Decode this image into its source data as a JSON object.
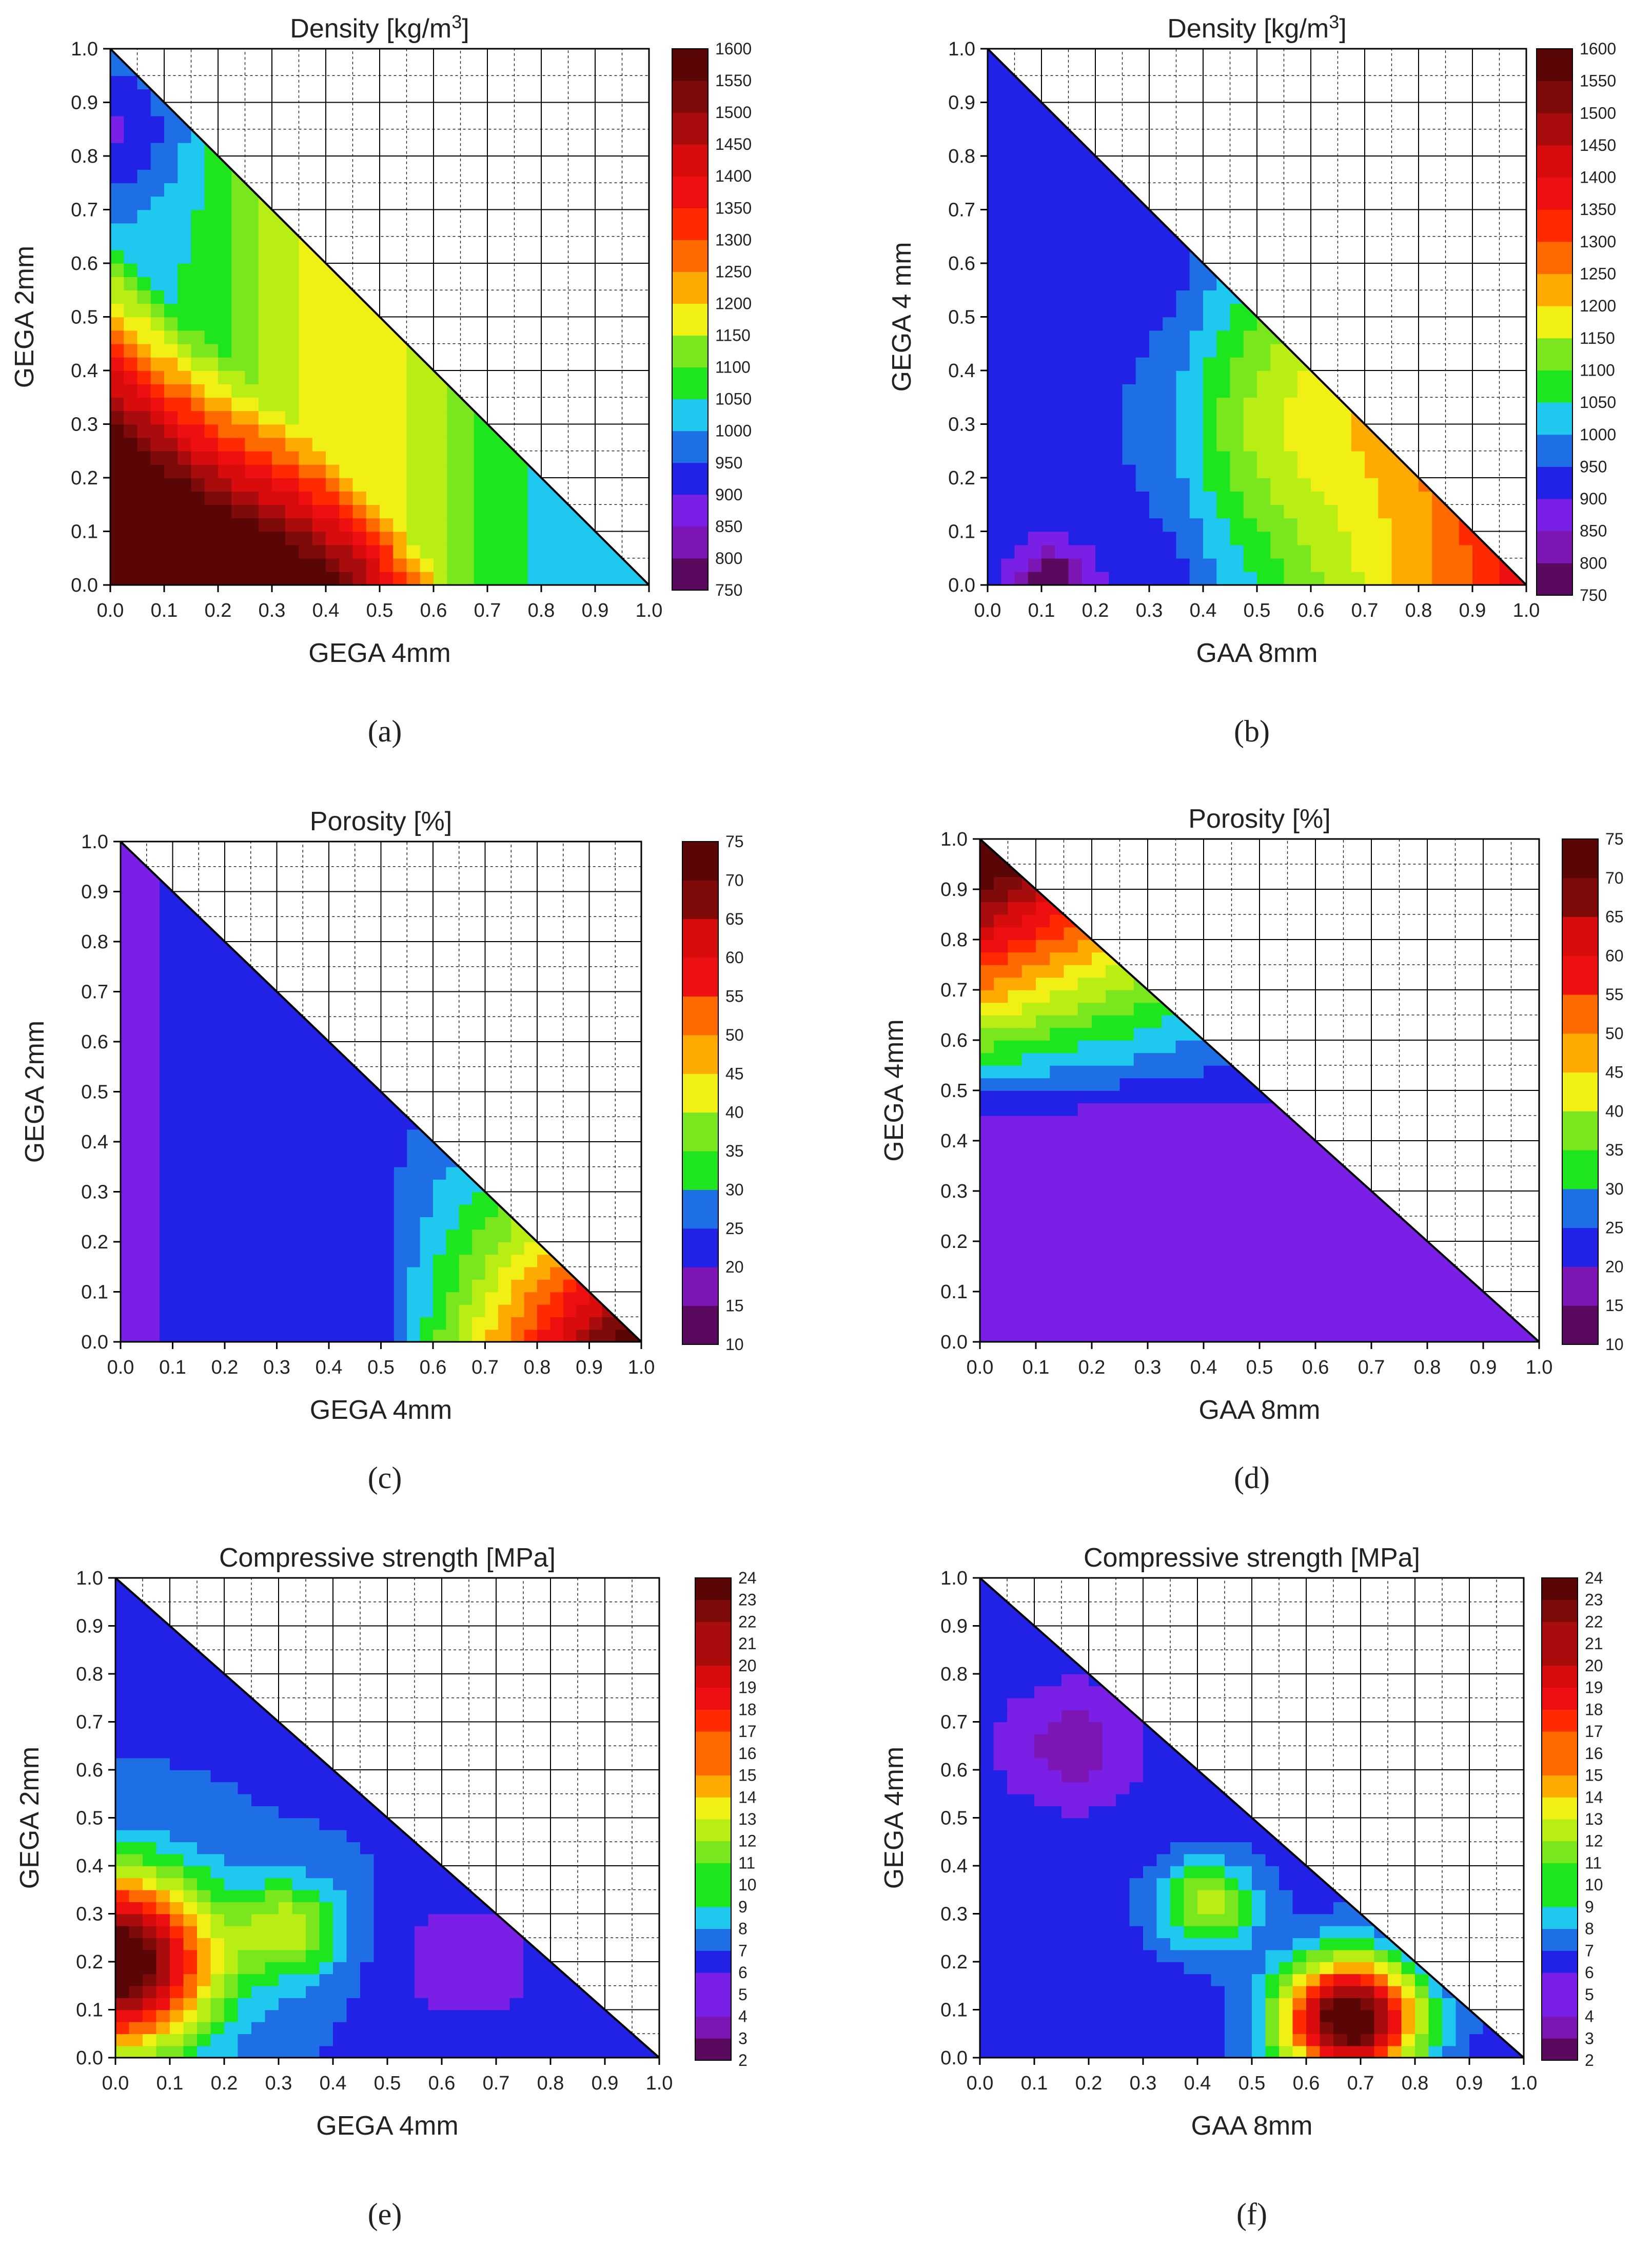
{
  "chart_data": [
    {
      "id": "a",
      "type": "heatmap",
      "subtype": "ternary-contour",
      "title": "Density [kg/m",
      "title_sup": "3",
      "title_end": "]",
      "xlabel": "GEGA 4mm",
      "ylabel": "GEGA 2mm",
      "xlim": [
        0,
        1
      ],
      "ylim": [
        0,
        1
      ],
      "xticks": [
        "0.0",
        "0.1",
        "0.2",
        "0.3",
        "0.4",
        "0.5",
        "0.6",
        "0.7",
        "0.8",
        "0.9",
        "1.0"
      ],
      "yticks": [
        "0.0",
        "0.1",
        "0.2",
        "0.3",
        "0.4",
        "0.5",
        "0.6",
        "0.7",
        "0.8",
        "0.9",
        "1.0"
      ],
      "colorbar": {
        "min": 750,
        "max": 1600,
        "levels": [
          "750",
          "800",
          "850",
          "900",
          "950",
          "1000",
          "1050",
          "1100",
          "1150",
          "1200",
          "1250",
          "1300",
          "1350",
          "1400",
          "1450",
          "1500",
          "1550",
          "1600"
        ]
      },
      "caption": "(a)"
    },
    {
      "id": "b",
      "type": "heatmap",
      "subtype": "ternary-contour",
      "title": "Density [kg/m",
      "title_sup": "3",
      "title_end": "]",
      "xlabel": "GAA 8mm",
      "ylabel": "GEGA 4 mm",
      "xlim": [
        0,
        1
      ],
      "ylim": [
        0,
        1
      ],
      "xticks": [
        "0.0",
        "0.1",
        "0.2",
        "0.3",
        "0.4",
        "0.5",
        "0.6",
        "0.7",
        "0.8",
        "0.9",
        "1.0"
      ],
      "yticks": [
        "0.0",
        "0.1",
        "0.2",
        "0.3",
        "0.4",
        "0.5",
        "0.6",
        "0.7",
        "0.8",
        "0.9",
        "1.0"
      ],
      "colorbar": {
        "min": 750,
        "max": 1600,
        "levels": [
          "750",
          "800",
          "850",
          "900",
          "950",
          "1000",
          "1050",
          "1100",
          "1150",
          "1200",
          "1250",
          "1300",
          "1350",
          "1400",
          "1450",
          "1500",
          "1550",
          "1600"
        ]
      },
      "caption": "(b)"
    },
    {
      "id": "c",
      "type": "heatmap",
      "subtype": "ternary-contour",
      "title": "Porosity [%]",
      "title_sup": "",
      "title_end": "",
      "xlabel": "GEGA 4mm",
      "ylabel": "GEGA 2mm",
      "xlim": [
        0,
        1
      ],
      "ylim": [
        0,
        1
      ],
      "xticks": [
        "0.0",
        "0.1",
        "0.2",
        "0.3",
        "0.4",
        "0.5",
        "0.6",
        "0.7",
        "0.8",
        "0.9",
        "1.0"
      ],
      "yticks": [
        "0.0",
        "0.1",
        "0.2",
        "0.3",
        "0.4",
        "0.5",
        "0.6",
        "0.7",
        "0.8",
        "0.9",
        "1.0"
      ],
      "colorbar": {
        "min": 10,
        "max": 75,
        "levels": [
          "10",
          "15",
          "20",
          "25",
          "30",
          "35",
          "40",
          "45",
          "50",
          "55",
          "60",
          "65",
          "70",
          "75"
        ]
      },
      "caption": "(c)"
    },
    {
      "id": "d",
      "type": "heatmap",
      "subtype": "ternary-contour",
      "title": "Porosity [%]",
      "title_sup": "",
      "title_end": "",
      "xlabel": "GAA 8mm",
      "ylabel": "GEGA 4mm",
      "xlim": [
        0,
        1
      ],
      "ylim": [
        0,
        1
      ],
      "xticks": [
        "0.0",
        "0.1",
        "0.2",
        "0.3",
        "0.4",
        "0.5",
        "0.6",
        "0.7",
        "0.8",
        "0.9",
        "1.0"
      ],
      "yticks": [
        "0.0",
        "0.1",
        "0.2",
        "0.3",
        "0.4",
        "0.5",
        "0.6",
        "0.7",
        "0.8",
        "0.9",
        "1.0"
      ],
      "colorbar": {
        "min": 10,
        "max": 75,
        "levels": [
          "10",
          "15",
          "20",
          "25",
          "30",
          "35",
          "40",
          "45",
          "50",
          "55",
          "60",
          "65",
          "70",
          "75"
        ]
      },
      "caption": "(d)"
    },
    {
      "id": "e",
      "type": "heatmap",
      "subtype": "ternary-contour",
      "title": "Compressive strength [MPa]",
      "title_sup": "",
      "title_end": "",
      "xlabel": "GEGA 4mm",
      "ylabel": "GEGA 2mm",
      "xlim": [
        0,
        1
      ],
      "ylim": [
        0,
        1
      ],
      "xticks": [
        "0.0",
        "0.1",
        "0.2",
        "0.3",
        "0.4",
        "0.5",
        "0.6",
        "0.7",
        "0.8",
        "0.9",
        "1.0"
      ],
      "yticks": [
        "0.0",
        "0.1",
        "0.2",
        "0.3",
        "0.4",
        "0.5",
        "0.6",
        "0.7",
        "0.8",
        "0.9",
        "1.0"
      ],
      "colorbar": {
        "min": 2,
        "max": 24,
        "levels": [
          "2",
          "3",
          "4",
          "5",
          "6",
          "7",
          "8",
          "9",
          "10",
          "11",
          "12",
          "13",
          "14",
          "15",
          "16",
          "17",
          "18",
          "19",
          "20",
          "21",
          "22",
          "23",
          "24"
        ]
      },
      "caption": "(e)"
    },
    {
      "id": "f",
      "type": "heatmap",
      "subtype": "ternary-contour",
      "title": "Compressive strength [MPa]",
      "title_sup": "",
      "title_end": "",
      "xlabel": "GAA 8mm",
      "ylabel": "GEGA 4mm",
      "xlim": [
        0,
        1
      ],
      "ylim": [
        0,
        1
      ],
      "xticks": [
        "0.0",
        "0.1",
        "0.2",
        "0.3",
        "0.4",
        "0.5",
        "0.6",
        "0.7",
        "0.8",
        "0.9",
        "1.0"
      ],
      "yticks": [
        "0.0",
        "0.1",
        "0.2",
        "0.3",
        "0.4",
        "0.5",
        "0.6",
        "0.7",
        "0.8",
        "0.9",
        "1.0"
      ],
      "colorbar": {
        "min": 2,
        "max": 24,
        "levels": [
          "2",
          "3",
          "4",
          "5",
          "6",
          "7",
          "8",
          "9",
          "10",
          "11",
          "12",
          "13",
          "14",
          "15",
          "16",
          "17",
          "18",
          "19",
          "20",
          "21",
          "22",
          "23",
          "24"
        ]
      },
      "caption": "(f)"
    }
  ],
  "colors": {
    "scale": [
      "#5a0a5e",
      "#7d14b4",
      "#7a1fe6",
      "#2222e6",
      "#1e6fe6",
      "#1ec8ee",
      "#1ee61e",
      "#7ae61e",
      "#b9ee14",
      "#f0f014",
      "#ffaa00",
      "#ff6a00",
      "#ff2a00",
      "#ee1010",
      "#d80c0c",
      "#a80c0c",
      "#7e0a0a",
      "#5a0606"
    ],
    "grid": "#000000",
    "contour": "#111111"
  }
}
